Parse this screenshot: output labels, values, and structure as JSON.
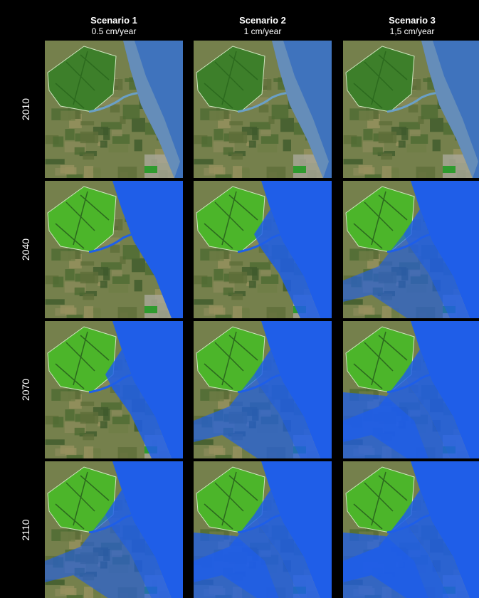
{
  "columns": [
    {
      "title": "Scenario 1",
      "subtitle": "0.5 cm/year"
    },
    {
      "title": "Scenario 2",
      "subtitle": "1 cm/year"
    },
    {
      "title": "Scenario 3",
      "subtitle": "1,5 cm/year"
    }
  ],
  "rows": [
    "2010",
    "2040",
    "2070",
    "2110"
  ]
}
